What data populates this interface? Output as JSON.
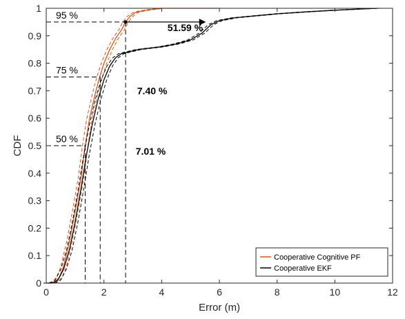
{
  "chart_data": {
    "type": "line",
    "xlabel": "Error (m)",
    "ylabel": "CDF",
    "xlim": [
      0,
      12
    ],
    "ylim": [
      0,
      1
    ],
    "xticks": [
      "0",
      "2",
      "4",
      "6",
      "8",
      "10",
      "12"
    ],
    "yticks": [
      "0",
      "0.1",
      "0.2",
      "0.3",
      "0.4",
      "0.5",
      "0.6",
      "0.7",
      "0.8",
      "0.9",
      "1"
    ],
    "grid": false,
    "legend_position": "bottom-right",
    "series": [
      {
        "name": "Cooperative Cognitive PF",
        "color": "#d95319",
        "x": [
          0,
          0.15,
          0.3,
          0.45,
          0.6,
          0.8,
          1.0,
          1.2,
          1.35,
          1.5,
          1.7,
          1.85,
          2.0,
          2.2,
          2.4,
          2.6,
          2.75,
          2.9,
          3.1,
          3.3,
          3.6,
          4.0,
          4.5,
          5.0,
          6.0
        ],
        "y": [
          0,
          0.0,
          0.005,
          0.02,
          0.06,
          0.15,
          0.26,
          0.38,
          0.5,
          0.6,
          0.69,
          0.75,
          0.8,
          0.85,
          0.89,
          0.92,
          0.95,
          0.97,
          0.985,
          0.99,
          0.995,
          1.0,
          1.0,
          1.0,
          1.0
        ]
      },
      {
        "name": "Cooperative EKF",
        "color": "#000000",
        "x": [
          0,
          0.2,
          0.4,
          0.6,
          0.8,
          1.0,
          1.2,
          1.4,
          1.6,
          1.8,
          2.0,
          2.2,
          2.4,
          2.6,
          2.8,
          3.2,
          3.6,
          4.0,
          4.5,
          5.0,
          5.4,
          5.7,
          6.0,
          6.5,
          7.0,
          8.0,
          9.0,
          10.0,
          11.0,
          11.5
        ],
        "y": [
          0,
          0.0,
          0.01,
          0.05,
          0.12,
          0.22,
          0.34,
          0.47,
          0.58,
          0.67,
          0.74,
          0.79,
          0.82,
          0.835,
          0.84,
          0.85,
          0.855,
          0.86,
          0.87,
          0.885,
          0.91,
          0.94,
          0.955,
          0.965,
          0.97,
          0.98,
          0.987,
          0.993,
          0.998,
          1.0
        ]
      }
    ],
    "percentile_markers": [
      {
        "label": "95 %",
        "y": 0.95,
        "x": 2.75
      },
      {
        "label": "75 %",
        "y": 0.75,
        "x": 1.87
      },
      {
        "label": "50 %",
        "y": 0.5,
        "x": 1.35
      }
    ],
    "annotations": [
      {
        "text": "51.59 %",
        "x": 4.2,
        "y": 0.93
      },
      {
        "text": "7.40 %",
        "x": 3.15,
        "y": 0.7
      },
      {
        "text": "7.01 %",
        "x": 3.1,
        "y": 0.48
      }
    ],
    "arrow": {
      "x_from": 2.75,
      "x_to": 5.5,
      "y": 0.95
    }
  }
}
